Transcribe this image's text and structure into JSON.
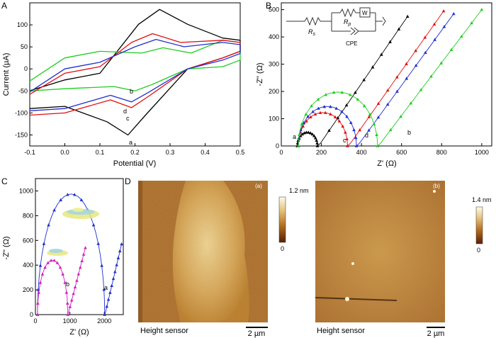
{
  "chart_data": [
    {
      "panel": "A",
      "type": "line",
      "xlabel": "Potential (V)",
      "ylabel": "Current (µA)",
      "xlim": [
        -0.1,
        0.5
      ],
      "ylim": [
        -175,
        150
      ],
      "xticks": [
        "-0.1",
        "0.0",
        "0.1",
        "0.2",
        "0.3",
        "0.4",
        "0.5"
      ],
      "yticks": [
        "-150",
        "-100",
        "-50",
        "0",
        "50",
        "100"
      ],
      "series": [
        {
          "name": "a",
          "color": "#000000",
          "peak_anodic": [
            0.27,
            135
          ],
          "peak_cathodic": [
            0.18,
            -150
          ],
          "start": [
            -0.1,
            -90
          ],
          "end_top": [
            0.5,
            65
          ],
          "end_bottom": [
            0.5,
            40
          ],
          "back_mid": [
            0.0,
            -30
          ]
        },
        {
          "name": "b",
          "color": "#1fce1f",
          "peak_anodic": [
            0.28,
            48
          ],
          "peak_cathodic": [
            0.2,
            -50
          ],
          "start": [
            -0.1,
            -50
          ],
          "end_top": [
            0.5,
            60
          ],
          "end_bottom": [
            0.5,
            20
          ],
          "back_mid": [
            0.0,
            20
          ]
        },
        {
          "name": "c",
          "color": "#e01010",
          "peak_anodic": [
            0.25,
            80
          ],
          "peak_cathodic": [
            0.19,
            -88
          ],
          "start": [
            -0.1,
            -105
          ],
          "end_top": [
            0.5,
            60
          ],
          "end_bottom": [
            0.5,
            40
          ],
          "back_mid": [
            0.0,
            -15
          ]
        },
        {
          "name": "d",
          "color": "#1f2fd0",
          "peak_anodic": [
            0.26,
            67
          ],
          "peak_cathodic": [
            0.19,
            -75
          ],
          "start": [
            -0.1,
            -95
          ],
          "end_top": [
            0.5,
            55
          ],
          "end_bottom": [
            0.5,
            35
          ],
          "back_mid": [
            0.0,
            -5
          ]
        }
      ]
    },
    {
      "panel": "B",
      "type": "scatter",
      "xlabel": "Z' (Ω)",
      "ylabel": "-Z'' (Ω)",
      "xlim": [
        0,
        1050
      ],
      "ylim": [
        0,
        525
      ],
      "xticks": [
        "0",
        "200",
        "400",
        "600",
        "800",
        "1000"
      ],
      "yticks": [
        "0",
        "100",
        "200",
        "300",
        "400",
        "500"
      ],
      "circuit_labels": [
        "R",
        "s",
        "R",
        "p",
        "W",
        "CPE"
      ],
      "series": [
        {
          "name": "a",
          "color": "#000000",
          "r0": 80,
          "diameter": 100,
          "tail_end": [
            630,
            475
          ]
        },
        {
          "name": "c",
          "color": "#e01010",
          "r0": 85,
          "diameter": 245,
          "tail_end": [
            810,
            495
          ]
        },
        {
          "name": "d",
          "color": "#1f2fd0",
          "r0": 85,
          "diameter": 290,
          "tail_end": [
            860,
            485
          ]
        },
        {
          "name": "b",
          "color": "#1fce1f",
          "r0": 85,
          "diameter": 395,
          "tail_end": [
            1000,
            500
          ]
        }
      ]
    },
    {
      "panel": "C",
      "type": "scatter",
      "xlabel": "Z' (Ω)",
      "ylabel": "-Z'' (Ω)",
      "xlim": [
        0,
        2550
      ],
      "ylim": [
        0,
        1100
      ],
      "xticks": [
        "0",
        "1000",
        "2000"
      ],
      "yticks": [
        "0",
        "200",
        "400",
        "600",
        "800",
        "1000"
      ],
      "series": [
        {
          "name": "a",
          "color": "#1f2fd0",
          "r0": 60,
          "diameter": 1950,
          "tail_end": [
            2500,
            570
          ]
        },
        {
          "name": "b",
          "color": "#d020c0",
          "r0": 60,
          "diameter": 880,
          "tail_end": [
            1450,
            540
          ]
        }
      ]
    }
  ],
  "panel_labels": {
    "A": "A",
    "B": "B",
    "C": "C",
    "D": "D"
  },
  "curve_labels_A": {
    "a": "a",
    "b": "b",
    "c": "c",
    "d": "d"
  },
  "afm": {
    "left": {
      "tag": "(a)",
      "scale_max": "1.2 nm",
      "scale_min": "0",
      "caption": "Height sensor",
      "scalebar": "2 µm"
    },
    "right": {
      "tag": "(b)",
      "scale_max": "1.4 nm",
      "scale_min": "0",
      "caption": "Height sensor",
      "scalebar": "2 µm"
    }
  }
}
